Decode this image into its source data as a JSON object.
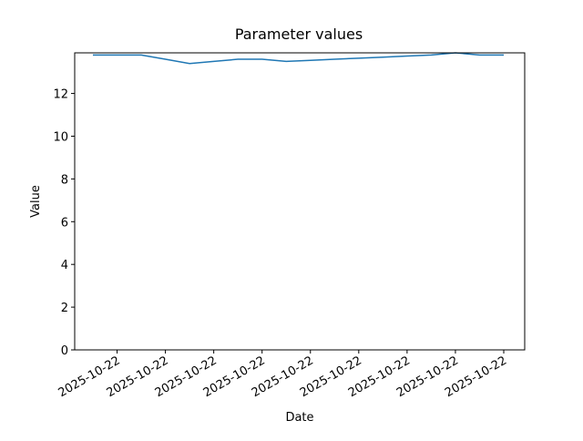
{
  "chart_data": {
    "type": "line",
    "title": "Parameter values",
    "x_label": "Date",
    "y_label": "Value",
    "categories": [
      null,
      "2025-10-22",
      null,
      "2025-10-22",
      null,
      "2025-10-22",
      null,
      "2025-10-22",
      null,
      "2025-10-22",
      null,
      "2025-10-22",
      null,
      "2025-10-22",
      null,
      "2025-10-22",
      null,
      "2025-10-22"
    ],
    "series": [
      {
        "color": "#1f77b4",
        "values": [
          13.8,
          13.8,
          13.8,
          13.6,
          13.4,
          13.5,
          13.6,
          13.6,
          13.5,
          13.55,
          13.6,
          13.65,
          13.7,
          13.75,
          13.8,
          13.9,
          13.8,
          13.8
        ]
      }
    ],
    "ylim": [
      0,
      13.9
    ],
    "yticks": [
      0,
      2,
      4,
      6,
      8,
      10,
      12
    ],
    "grid": false
  }
}
